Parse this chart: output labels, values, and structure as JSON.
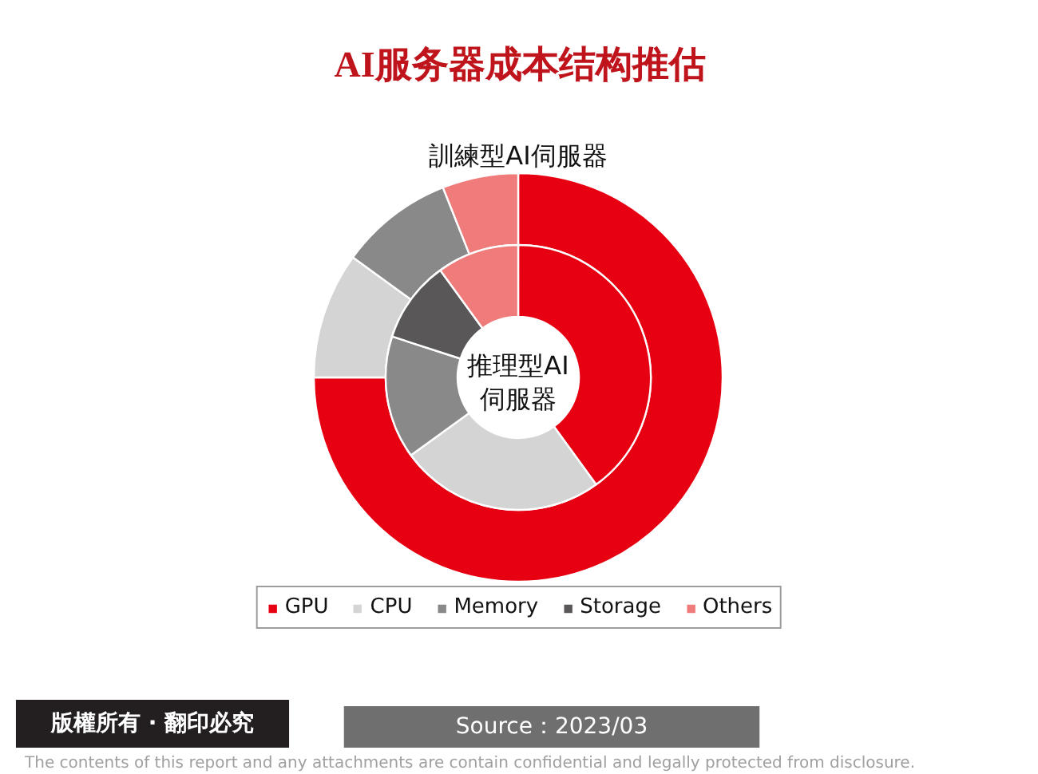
{
  "chart_data": {
    "type": "donut",
    "title": "AI服务器成本结构推估",
    "categories": [
      "GPU",
      "CPU",
      "Memory",
      "Storage",
      "Others"
    ],
    "colors": [
      "#e60012",
      "#d4d4d4",
      "#898989",
      "#595757",
      "#ef7b7b"
    ],
    "series": [
      {
        "name": "訓練型AI伺服器",
        "values": [
          75,
          10,
          9,
          null,
          6
        ]
      },
      {
        "name": "推理型AI伺服器",
        "values": [
          40,
          25,
          15,
          10,
          10
        ]
      }
    ],
    "legend": "bottom",
    "annotations": [
      "版權所有 · 翻印必究",
      "Source：2023/03",
      "The contents of this report and any attachments are contain confidential and legally protected from disclosure."
    ]
  }
}
